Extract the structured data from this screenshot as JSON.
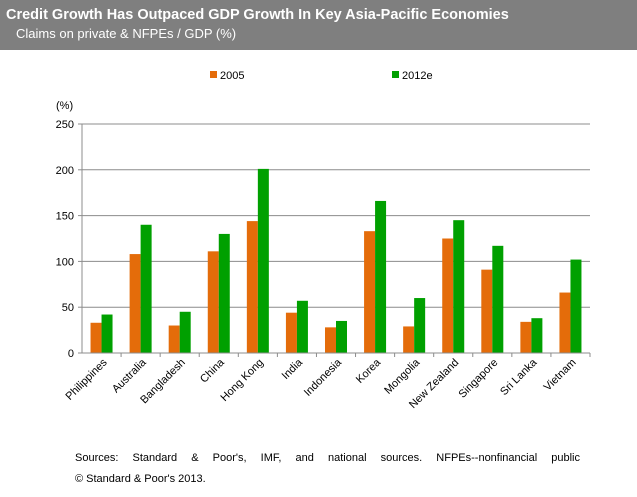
{
  "header": {
    "title": "Credit Growth Has Outpaced GDP Growth In Key Asia-Pacific Economies",
    "subtitle": "Claims on private & NFPEs / GDP (%)"
  },
  "footer": {
    "sources": "Sources: Standard & Poor's, IMF, and national sources. NFPEs--nonfinancial public",
    "copyright": "© Standard & Poor's 2013."
  },
  "chart_data": {
    "type": "bar",
    "ylabel": "(%)",
    "ylim": [
      0,
      250
    ],
    "yticks": [
      0,
      50,
      100,
      150,
      200,
      250
    ],
    "grid": true,
    "legend_position": "top",
    "categories": [
      "Philippines",
      "Australia",
      "Bangladesh",
      "China",
      "Hong Kong",
      "India",
      "Indonesia",
      "Korea",
      "Mongolia",
      "New Zealand",
      "Singapore",
      "Sri Lanka",
      "Vietnam"
    ],
    "series": [
      {
        "name": "2005",
        "color": "#e46c0a",
        "values": [
          33,
          108,
          30,
          111,
          144,
          44,
          28,
          133,
          29,
          125,
          91,
          34,
          66
        ]
      },
      {
        "name": "2012e",
        "color": "#00a000",
        "values": [
          42,
          140,
          45,
          130,
          201,
          57,
          35,
          166,
          60,
          145,
          117,
          38,
          102
        ]
      }
    ]
  }
}
